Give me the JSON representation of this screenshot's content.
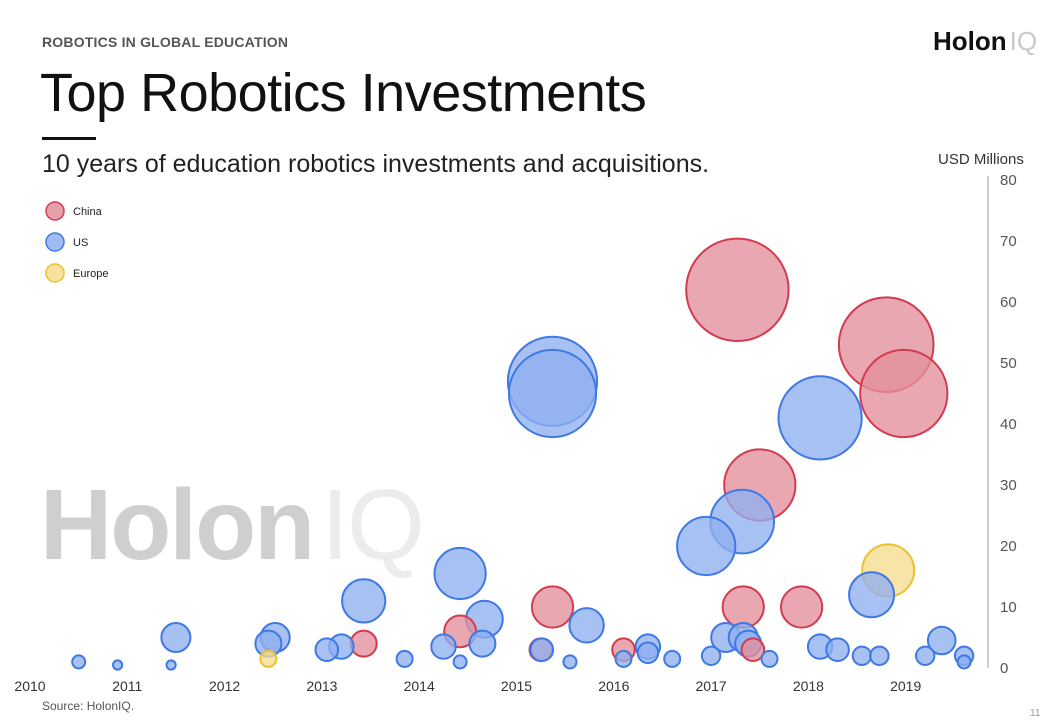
{
  "header": {
    "eyebrow": "ROBOTICS IN GLOBAL EDUCATION",
    "logo_main": "Holon",
    "logo_suffix": "IQ",
    "title": "Top Robotics Investments",
    "subtitle": "10 years of education robotics investments and acquisitions."
  },
  "watermark": {
    "main": "Holon",
    "suffix": "IQ"
  },
  "footer": {
    "source": "Source: HolonIQ.",
    "page": "11"
  },
  "colors": {
    "China": {
      "fill": "#e38f9b",
      "stroke": "#d23b50"
    },
    "US": {
      "fill": "#8fb0f0",
      "stroke": "#3f79e3"
    },
    "Europe": {
      "fill": "#f6dc8e",
      "stroke": "#eec02f"
    }
  },
  "chart_data": {
    "type": "scatter",
    "title": "Top Robotics Investments",
    "ylabel": "USD Millions",
    "xlim": [
      2010,
      2019.9
    ],
    "ylim": [
      0,
      80
    ],
    "x_ticks": [
      "2010",
      "2011",
      "2012",
      "2013",
      "2014",
      "2015",
      "2016",
      "2017",
      "2018",
      "2019"
    ],
    "y_ticks": [
      "0",
      "10",
      "20",
      "30",
      "40",
      "50",
      "60",
      "70",
      "80"
    ],
    "legend": {
      "position": "top-left",
      "entries": [
        "China",
        "US",
        "Europe"
      ]
    },
    "size_encodes": "value",
    "series": [
      {
        "name": "China",
        "points": [
          [
            2013.43,
            4
          ],
          [
            2014.42,
            6
          ],
          [
            2015.25,
            3
          ],
          [
            2015.37,
            10
          ],
          [
            2016.1,
            3
          ],
          [
            2017.27,
            62
          ],
          [
            2017.33,
            10
          ],
          [
            2017.43,
            3
          ],
          [
            2017.5,
            30
          ],
          [
            2017.93,
            10
          ],
          [
            2018.8,
            53
          ],
          [
            2018.98,
            45
          ]
        ]
      },
      {
        "name": "US",
        "points": [
          [
            2010.5,
            1
          ],
          [
            2010.9,
            0.5
          ],
          [
            2011.5,
            5
          ],
          [
            2011.45,
            0.5
          ],
          [
            2012.45,
            4
          ],
          [
            2012.52,
            5
          ],
          [
            2013.05,
            3
          ],
          [
            2013.2,
            3.5
          ],
          [
            2013.43,
            11
          ],
          [
            2013.85,
            1.5
          ],
          [
            2014.25,
            3.5
          ],
          [
            2014.42,
            15.5
          ],
          [
            2014.42,
            1
          ],
          [
            2014.65,
            4
          ],
          [
            2014.67,
            8
          ],
          [
            2015.26,
            3
          ],
          [
            2015.37,
            47
          ],
          [
            2015.37,
            45
          ],
          [
            2015.55,
            1
          ],
          [
            2015.72,
            7
          ],
          [
            2016.1,
            1.5
          ],
          [
            2016.35,
            3.5
          ],
          [
            2016.35,
            2.5
          ],
          [
            2016.6,
            1.5
          ],
          [
            2016.95,
            20
          ],
          [
            2017.0,
            2
          ],
          [
            2017.15,
            5
          ],
          [
            2017.32,
            24
          ],
          [
            2017.33,
            5
          ],
          [
            2017.38,
            4
          ],
          [
            2017.6,
            1.5
          ],
          [
            2018.12,
            41
          ],
          [
            2018.12,
            3.5
          ],
          [
            2018.3,
            3
          ],
          [
            2018.55,
            2
          ],
          [
            2018.65,
            12
          ],
          [
            2018.73,
            2
          ],
          [
            2019.2,
            2
          ],
          [
            2019.37,
            4.5
          ],
          [
            2019.6,
            2
          ],
          [
            2019.6,
            1
          ]
        ]
      },
      {
        "name": "Europe",
        "points": [
          [
            2012.45,
            1.5
          ],
          [
            2018.82,
            16
          ]
        ]
      }
    ]
  }
}
